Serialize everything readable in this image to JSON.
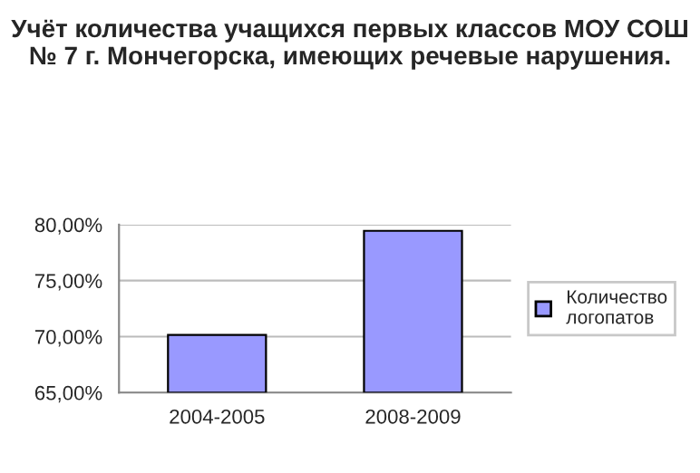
{
  "chart_data": {
    "type": "bar",
    "title": "Учёт количества учащихся первых классов МОУ СОШ № 7 г. Мончегорска, имеющих речевые нарушения.",
    "categories": [
      "2004-2005",
      "2008-2009"
    ],
    "series": [
      {
        "name": "Количество логопатов",
        "color": "#9999ff",
        "values": [
          70.15,
          79.45
        ]
      }
    ],
    "ylim": [
      65,
      80
    ],
    "yticks": [
      {
        "value": 65,
        "label": "65,00%"
      },
      {
        "value": 70,
        "label": "70,00%"
      },
      {
        "value": 75,
        "label": "75,00%"
      },
      {
        "value": 80,
        "label": "80,00%"
      }
    ],
    "grid": "y",
    "legend": "right"
  }
}
